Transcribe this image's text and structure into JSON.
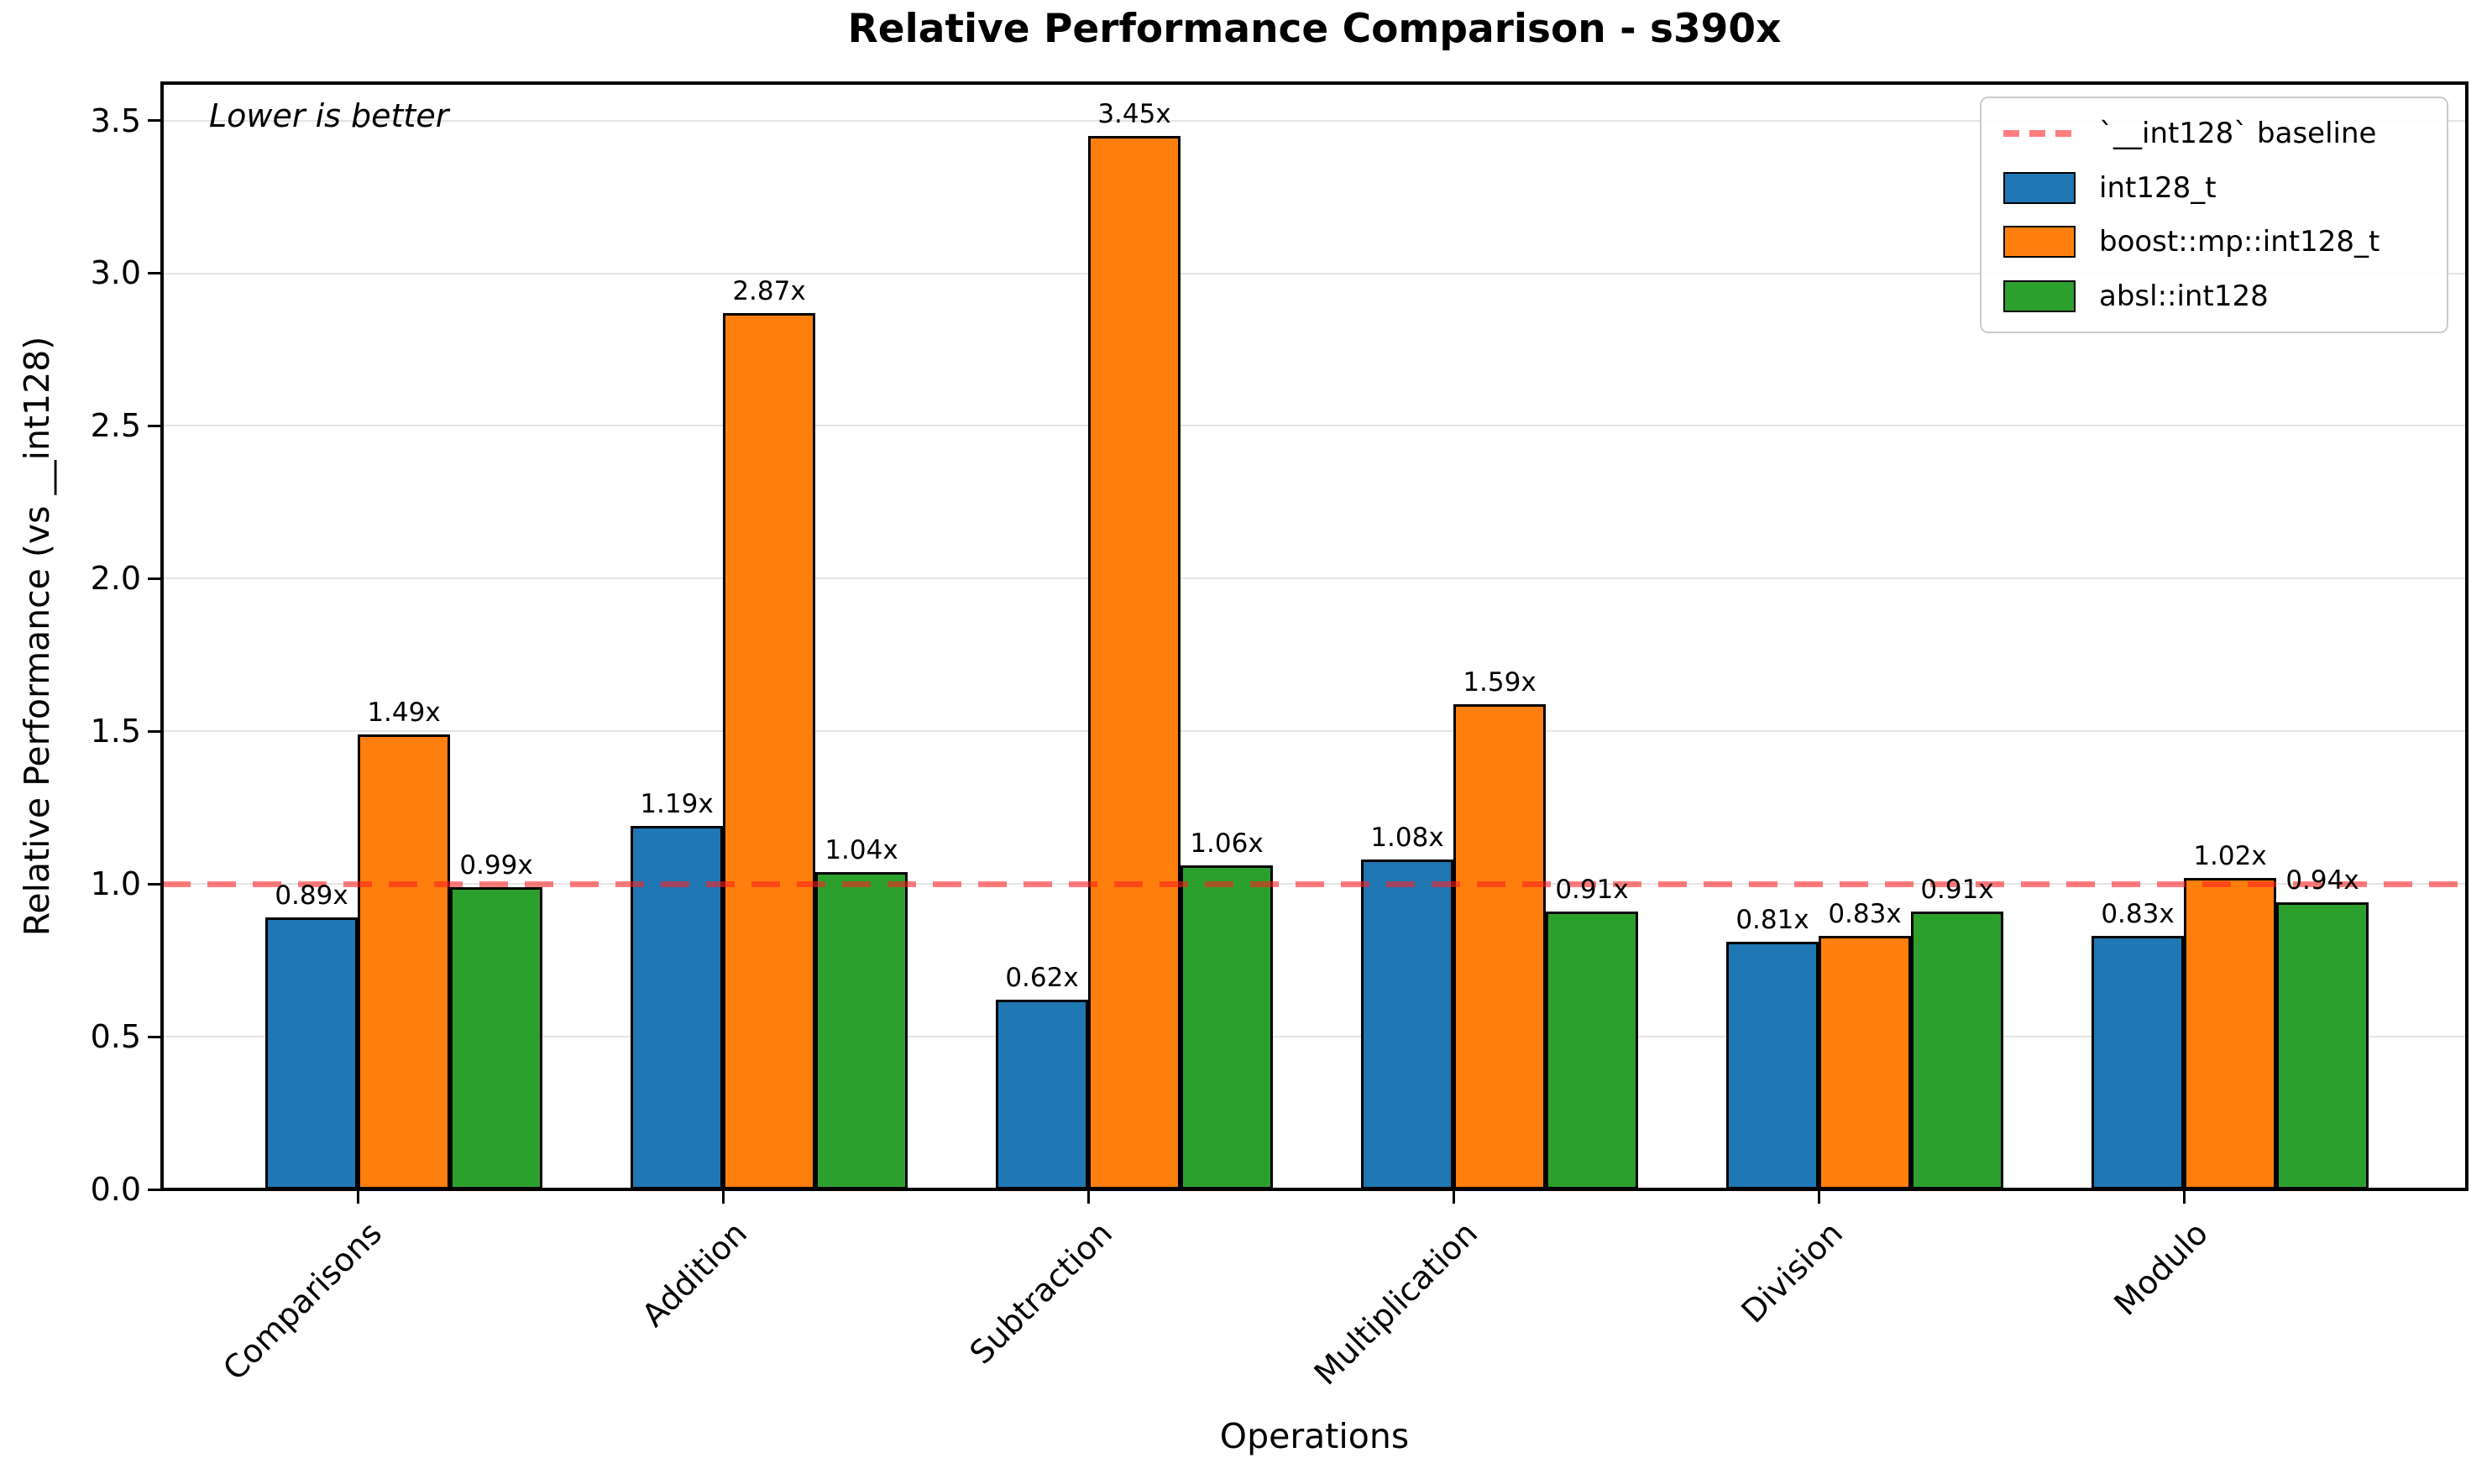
{
  "chart_data": {
    "type": "bar",
    "title": "Relative Performance Comparison - s390x",
    "xlabel": "Operations",
    "ylabel": "Relative Performance (vs __int128)",
    "annotation": "Lower is better",
    "categories": [
      "Comparisons",
      "Addition",
      "Subtraction",
      "Multiplication",
      "Division",
      "Modulo"
    ],
    "series": [
      {
        "name": "int128_t",
        "color": "#1f77b4",
        "values": [
          0.89,
          1.19,
          0.62,
          1.08,
          0.81,
          0.83
        ]
      },
      {
        "name": "boost::mp::int128_t",
        "color": "#ff7f0e",
        "values": [
          1.49,
          2.87,
          3.45,
          1.59,
          0.83,
          1.02
        ]
      },
      {
        "name": "absl::int128",
        "color": "#2ca02c",
        "values": [
          0.99,
          1.04,
          1.06,
          0.91,
          0.91,
          0.94
        ]
      }
    ],
    "bar_label_suffix": "x",
    "baseline": {
      "value": 1.0,
      "label": "`__int128` baseline",
      "color": "#ff1f1f"
    },
    "yticks": [
      0.0,
      0.5,
      1.0,
      1.5,
      2.0,
      2.5,
      3.0,
      3.5
    ],
    "ylim": [
      0,
      3.6225
    ],
    "grid": true,
    "legend_position": "upper right"
  }
}
